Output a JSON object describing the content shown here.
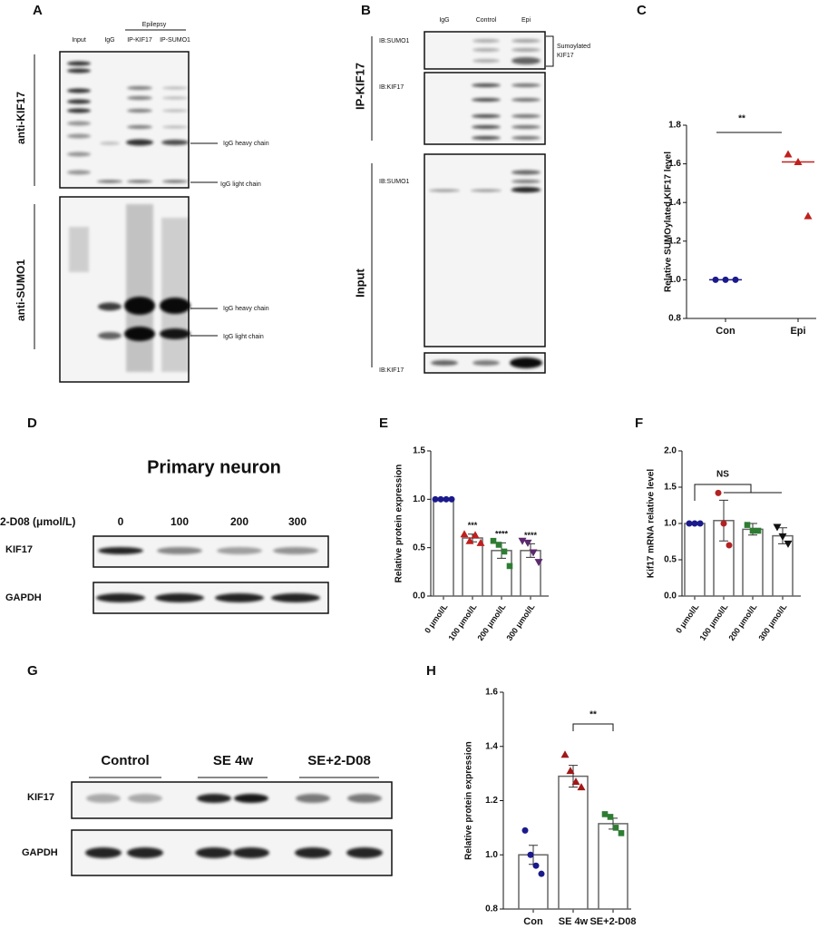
{
  "panel_labels": [
    "A",
    "B",
    "C",
    "D",
    "E",
    "F",
    "G",
    "H"
  ],
  "panel_a": {
    "group": "Epilepsy",
    "lanes": [
      "Input",
      "IgG",
      "IP-KIF17",
      "IP-SUMO1"
    ],
    "blots": [
      "anti-KIF17",
      "anti-SUMO1"
    ],
    "markers": [
      "IgG heavy chain",
      "IgG light chain",
      "IgG heavy chain",
      "IgG light chain"
    ]
  },
  "panel_b": {
    "lanes": [
      "IgG",
      "Control",
      "Epi"
    ],
    "groups": [
      "IP-KIF17",
      "Input"
    ],
    "blots": [
      "IB:SUMO1",
      "IB:KIF17",
      "IB:SUMO1",
      "IB:KIF17"
    ],
    "bracket_label": [
      "Sumoylated",
      "KIF17"
    ]
  },
  "panel_d": {
    "title": "Primary neuron",
    "treatment": "2-D08 (μmol/L)",
    "doses": [
      "0",
      "100",
      "200",
      "300"
    ],
    "blots": [
      "KIF17",
      "GAPDH"
    ]
  },
  "panel_g": {
    "groups": [
      "Control",
      "SE 4w",
      "SE+2-D08"
    ],
    "blots": [
      "KIF17",
      "GAPDH"
    ]
  },
  "chart_data": [
    {
      "type": "scatter",
      "ylabel": "Relative SUMOylated KIF17 level",
      "categories": [
        "Con",
        "Epi"
      ],
      "points": [
        [
          1.0,
          1.0,
          1.0
        ],
        [
          1.65,
          1.61,
          1.33
        ]
      ],
      "means": [
        1.0,
        1.61
      ],
      "colors": [
        "#1a1a8c",
        "#c0201e"
      ],
      "markers": [
        "circle",
        "triangle"
      ],
      "ylim": [
        0.8,
        1.8
      ],
      "yticks": [
        0.8,
        {
          "value": 1.0,
          "label": "1.0"
        },
        1.2,
        1.4,
        1.6,
        1.8
      ],
      "annotation": "**"
    },
    {
      "type": "bar",
      "ylabel": "Relative  protein expression",
      "categories": [
        "0 μmol/L",
        "100 μmol/L",
        "200 μmol/L",
        "300 μmol/L"
      ],
      "values": [
        1.0,
        0.6,
        0.47,
        0.47
      ],
      "errors": [
        0,
        0.04,
        0.08,
        0.07
      ],
      "points": [
        [
          1.0,
          1.0,
          1.0,
          1.0
        ],
        [
          0.64,
          0.57,
          0.63,
          0.55
        ],
        [
          0.57,
          0.53,
          0.46,
          0.31
        ],
        [
          0.57,
          0.55,
          0.45,
          0.35
        ]
      ],
      "colors": [
        "#1a1a8c",
        "#c0201e",
        "#2e7d32",
        "#5c2a6e"
      ],
      "markers": [
        "circle",
        "triangle",
        "square",
        "triangle-down"
      ],
      "ylim": [
        0,
        1.5
      ],
      "yticks": [
        {
          "value": 0,
          "label": "0.0"
        },
        0.5,
        {
          "value": 1.0,
          "label": "1.0"
        },
        1.5
      ],
      "annotations": [
        null,
        "***",
        "****",
        "****"
      ]
    },
    {
      "type": "bar",
      "ylabel": "Kif17 mRNA  relative level",
      "categories": [
        "0 μmol/L",
        "100 μmol/L",
        "200 μmol/L",
        "300 μmol/L"
      ],
      "values": [
        1.0,
        1.04,
        0.92,
        0.83
      ],
      "errors": [
        0,
        0.28,
        0.08,
        0.11
      ],
      "points": [
        [
          1.0,
          1.0,
          1.0
        ],
        [
          1.42,
          1.0,
          0.7
        ],
        [
          0.98,
          0.9,
          0.9
        ],
        [
          0.95,
          0.82,
          0.72
        ]
      ],
      "colors": [
        "#1a1a8c",
        "#b22222",
        "#2e7d32",
        "#111111"
      ],
      "markers": [
        "circle",
        "circle",
        "square",
        "triangle-down"
      ],
      "ylim": [
        0,
        2.0
      ],
      "yticks": [
        {
          "value": 0,
          "label": "0.0"
        },
        0.5,
        {
          "value": 1.0,
          "label": "1.0"
        },
        1.5,
        {
          "value": 2.0,
          "label": "2.0"
        }
      ],
      "annotation": "NS"
    },
    {
      "type": "bar",
      "ylabel": "Relative  protein expression",
      "categories": [
        "Con",
        "SE 4w",
        "SE+2-D08"
      ],
      "values": [
        1.0,
        1.29,
        1.115
      ],
      "errors": [
        0.035,
        0.04,
        0.02
      ],
      "points": [
        [
          1.09,
          1.0,
          0.96,
          0.93
        ],
        [
          1.37,
          1.31,
          1.27,
          1.25
        ],
        [
          1.15,
          1.14,
          1.1,
          1.08
        ]
      ],
      "colors": [
        "#1a1a8c",
        "#a01818",
        "#2e7d32"
      ],
      "markers": [
        "circle",
        "triangle",
        "square"
      ],
      "ylim": [
        0.8,
        1.6
      ],
      "yticks": [
        0.8,
        {
          "value": 1.0,
          "label": "1.0"
        },
        1.2,
        1.4,
        1.6
      ],
      "annotation": "**"
    }
  ]
}
